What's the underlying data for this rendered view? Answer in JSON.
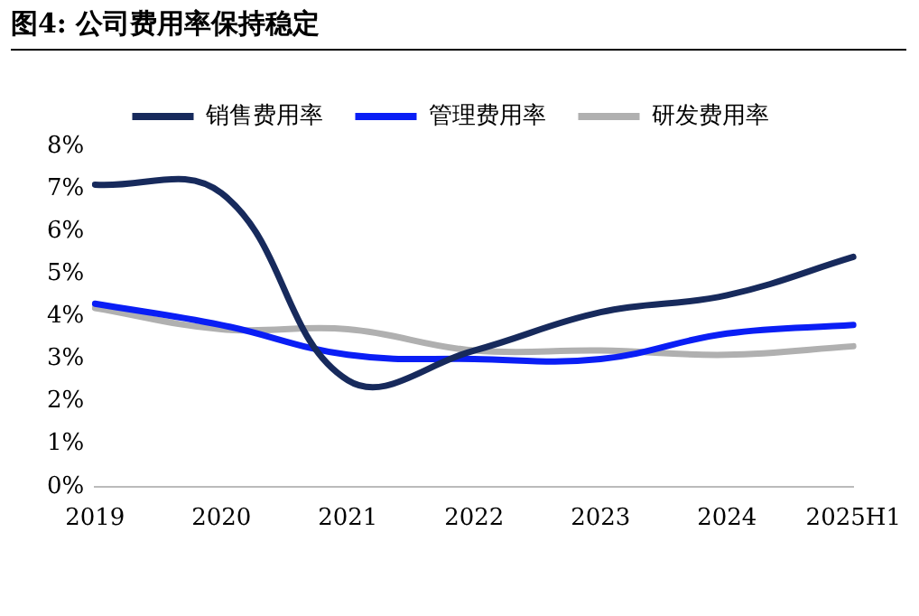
{
  "chart_data": {
    "type": "line",
    "title": "图4:  公司费用率保持稳定",
    "categories": [
      "2019",
      "2020",
      "2021",
      "2022",
      "2023",
      "2024",
      "2025H1"
    ],
    "series": [
      {
        "name": "销售费用率",
        "color": "#172a5c",
        "values": [
          7.1,
          6.9,
          2.5,
          3.2,
          4.1,
          4.5,
          5.4
        ]
      },
      {
        "name": "管理费用率",
        "color": "#0a1ef5",
        "values": [
          4.3,
          3.8,
          3.1,
          3.0,
          3.0,
          3.6,
          3.8
        ]
      },
      {
        "name": "研发费用率",
        "color": "#b0b0b0",
        "values": [
          4.2,
          3.7,
          3.7,
          3.2,
          3.2,
          3.1,
          3.3
        ]
      }
    ],
    "ylim": [
      0,
      8
    ],
    "yticks": [
      {
        "value": 0,
        "label": "0%"
      },
      {
        "value": 1,
        "label": "1%"
      },
      {
        "value": 2,
        "label": "2%"
      },
      {
        "value": 3,
        "label": "3%"
      },
      {
        "value": 4,
        "label": "4%"
      },
      {
        "value": 5,
        "label": "5%"
      },
      {
        "value": 6,
        "label": "6%"
      },
      {
        "value": 7,
        "label": "7%"
      },
      {
        "value": 8,
        "label": "8%"
      }
    ],
    "grid": false,
    "legend": "top",
    "marker": "none",
    "line_style": "solid"
  }
}
